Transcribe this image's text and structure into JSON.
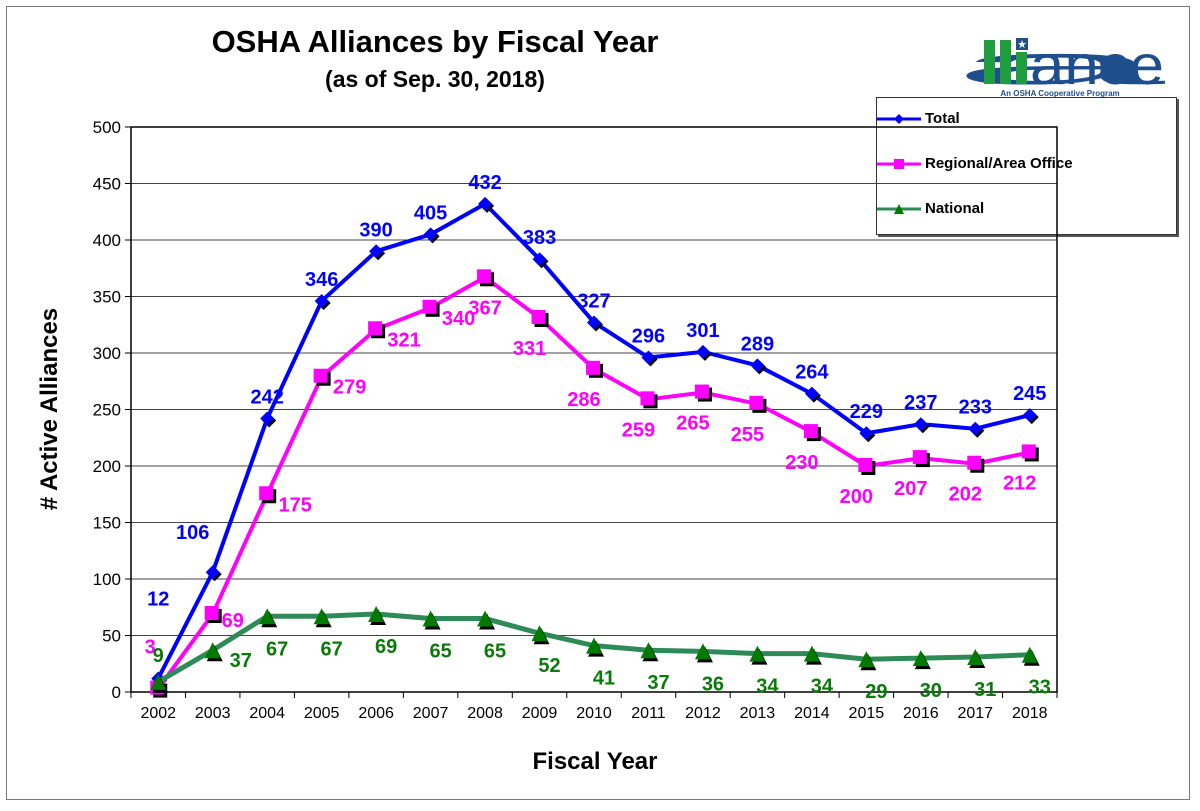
{
  "chart_data": {
    "type": "line",
    "title": "OSHA Alliances by Fiscal Year",
    "subtitle": "(as of Sep. 30, 2018)",
    "xlabel": "Fiscal Year",
    "ylabel": "# Active Alliances",
    "ylim": [
      0,
      500
    ],
    "yticks": [
      0,
      50,
      100,
      150,
      200,
      250,
      300,
      350,
      400,
      450,
      500
    ],
    "grid": true,
    "legend_position": "top-right",
    "categories": [
      "2002",
      "2003",
      "2004",
      "2005",
      "2006",
      "2007",
      "2008",
      "2009",
      "2010",
      "2011",
      "2012",
      "2013",
      "2014",
      "2015",
      "2016",
      "2017",
      "2018"
    ],
    "series": [
      {
        "name": "Total",
        "color": "#0000FF",
        "marker": "diamond",
        "values": [
          12,
          106,
          242,
          346,
          390,
          405,
          432,
          383,
          327,
          296,
          301,
          289,
          264,
          229,
          237,
          233,
          245
        ]
      },
      {
        "name": "Regional/Area Office",
        "color": "#FF00FF",
        "marker": "square",
        "values": [
          3,
          69,
          175,
          279,
          321,
          340,
          367,
          331,
          286,
          259,
          265,
          255,
          230,
          200,
          207,
          202,
          212
        ]
      },
      {
        "name": "National",
        "color": "#2E8B57",
        "marker_color": "#007A00",
        "label_color": "#0A7A0A",
        "marker": "triangle",
        "values": [
          9,
          37,
          67,
          67,
          69,
          65,
          65,
          52,
          41,
          37,
          36,
          34,
          34,
          29,
          30,
          31,
          33
        ]
      }
    ]
  },
  "logo": {
    "word": "alliance",
    "tagline": "An OSHA Cooperative Program",
    "blue": "#1F4E8C",
    "green": "#1E9E3E"
  }
}
